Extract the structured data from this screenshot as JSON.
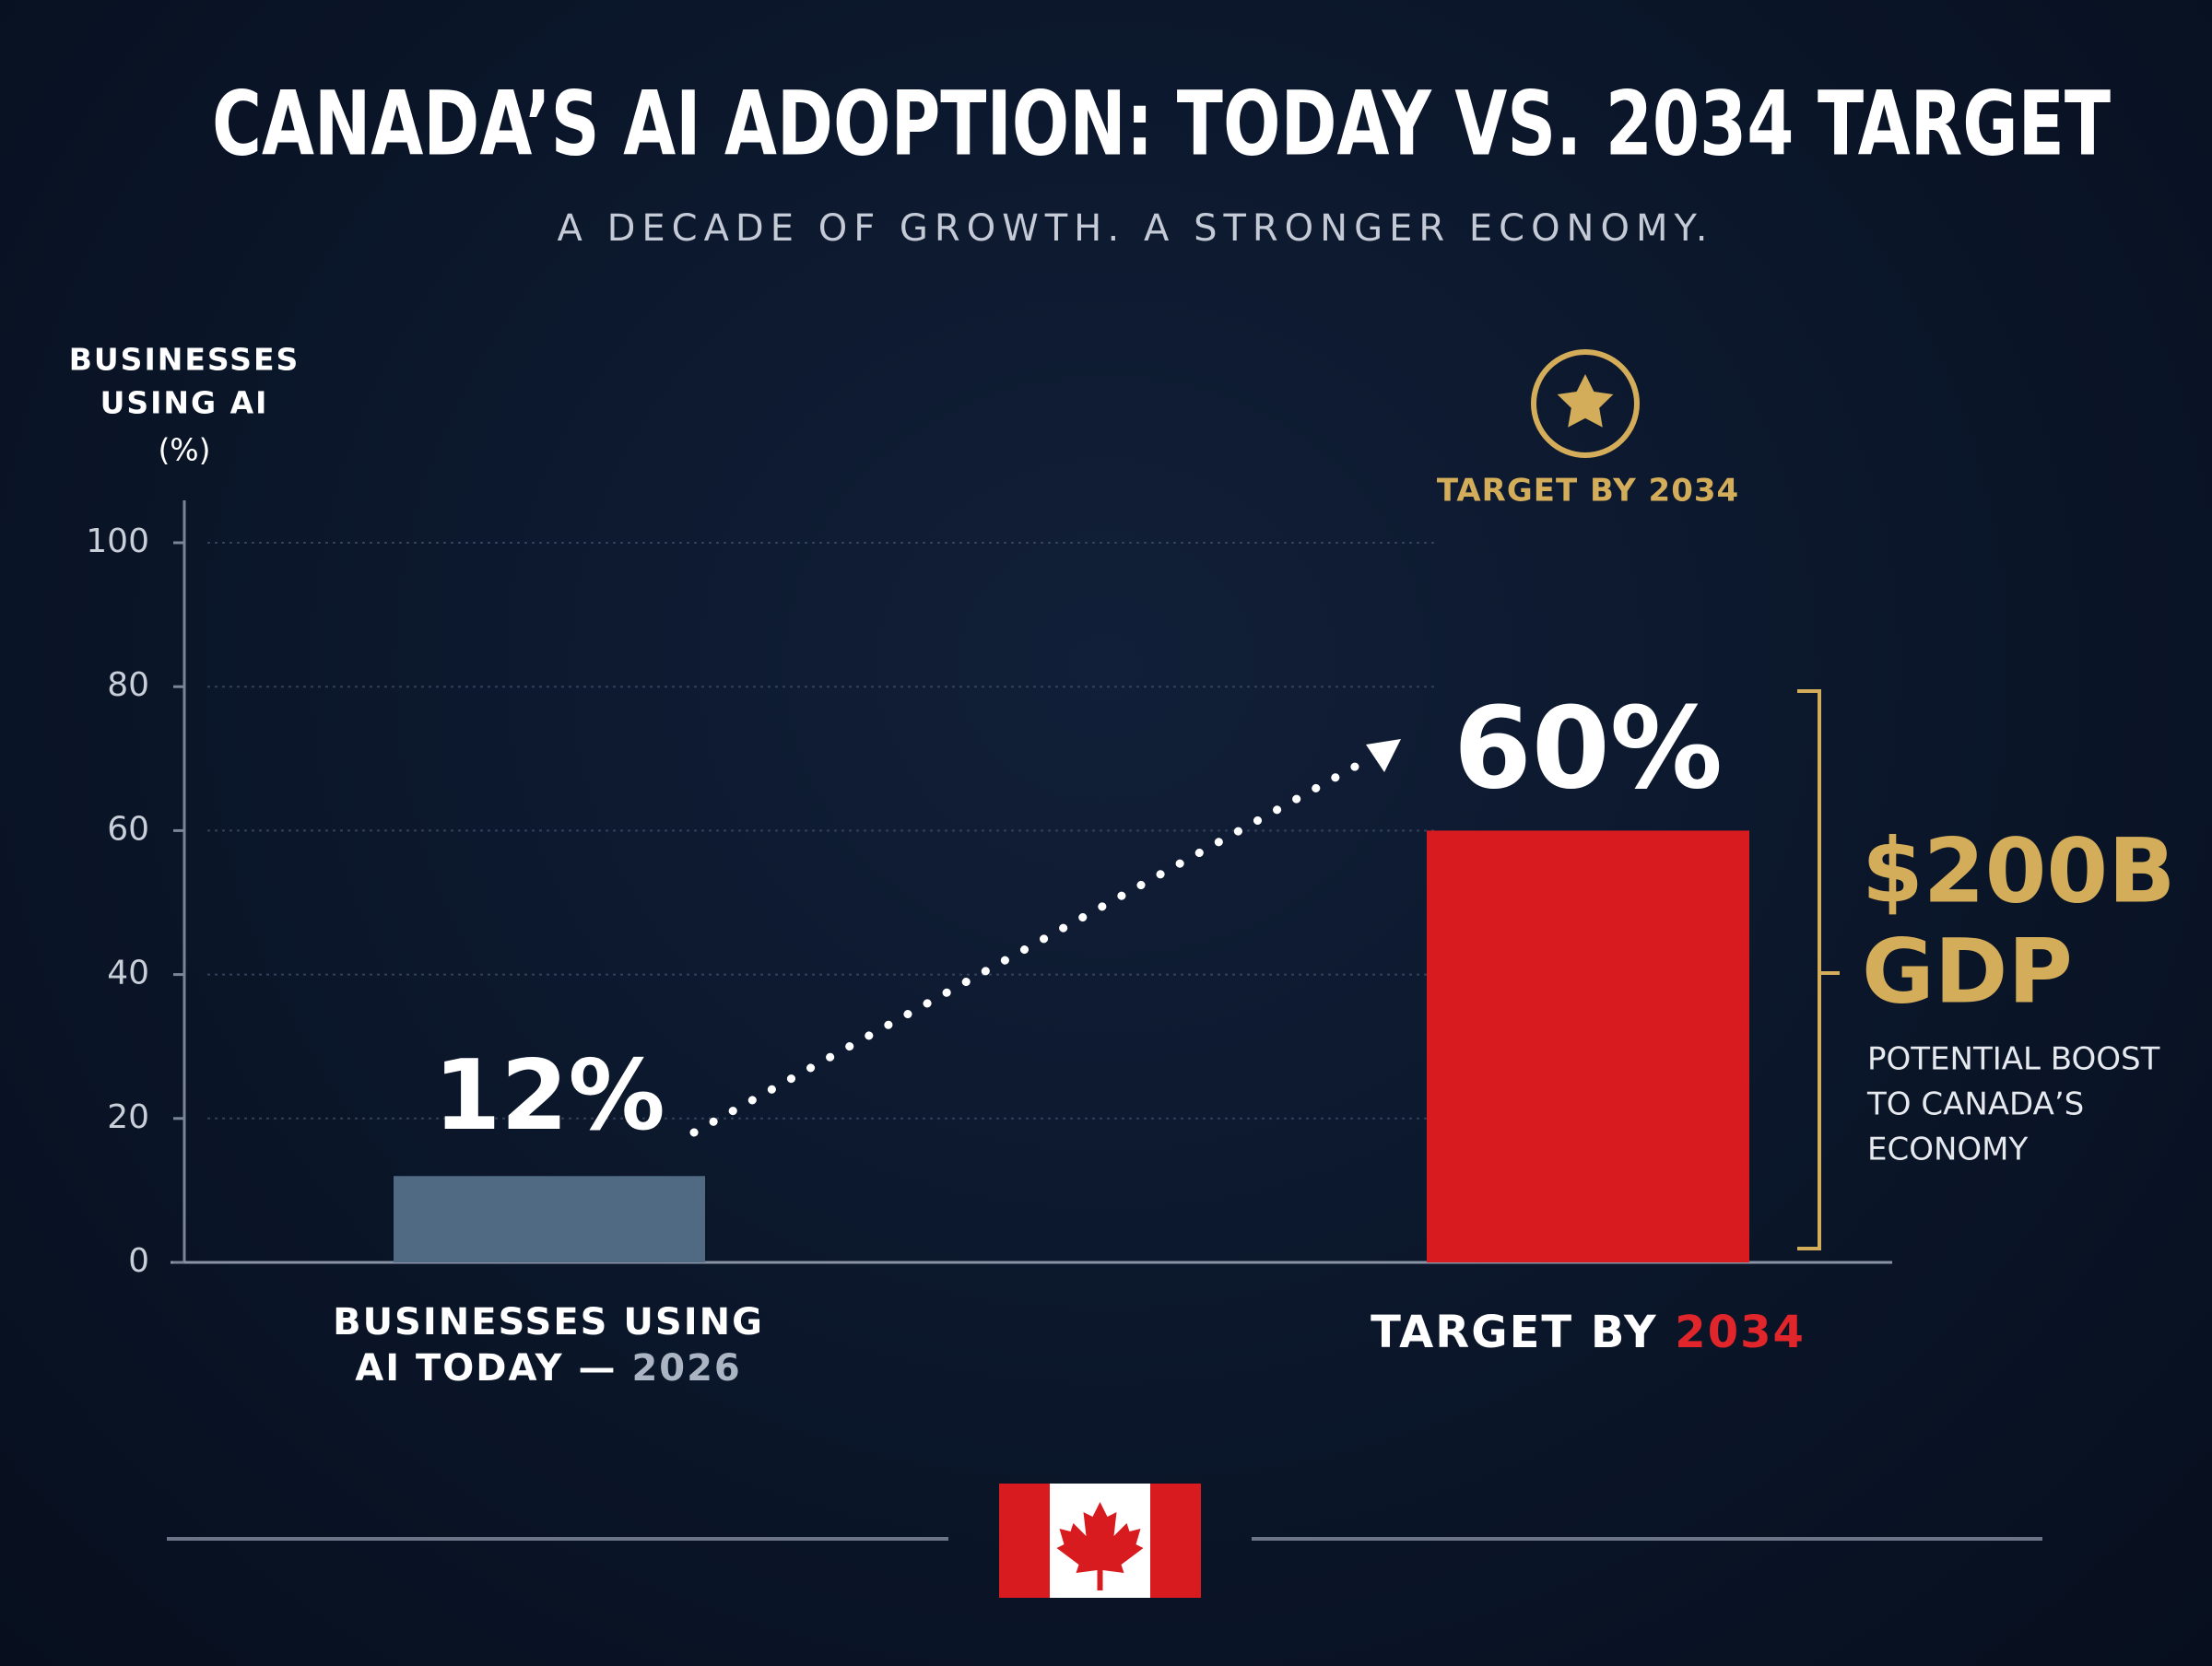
{
  "chart_data": {
    "type": "bar",
    "title": "CANADA’S AI ADOPTION: TODAY VS. 2034 TARGET",
    "subtitle": "A DECADE OF GROWTH. A STRONGER ECONOMY.",
    "y_label": [
      "BUSINESSES",
      "USING AI",
      "(%)"
    ],
    "categories": [
      "BUSINESSES USING AI TODAY — 2026",
      "TARGET BY 2034"
    ],
    "values": [
      12,
      60
    ],
    "value_labels": [
      "12%",
      "60%"
    ],
    "colors": [
      "#506a83",
      "#d81b1f"
    ],
    "ylim": [
      0,
      100
    ],
    "yticks": [
      0,
      20,
      40,
      60,
      80,
      100
    ],
    "grid": true,
    "target_badge": "TARGET BY 2034",
    "gdp_headline": [
      "$200B",
      "GDP"
    ],
    "gdp_note": [
      "POTENTIAL BOOST",
      "TO CANADA’S",
      "ECONOMY"
    ]
  }
}
